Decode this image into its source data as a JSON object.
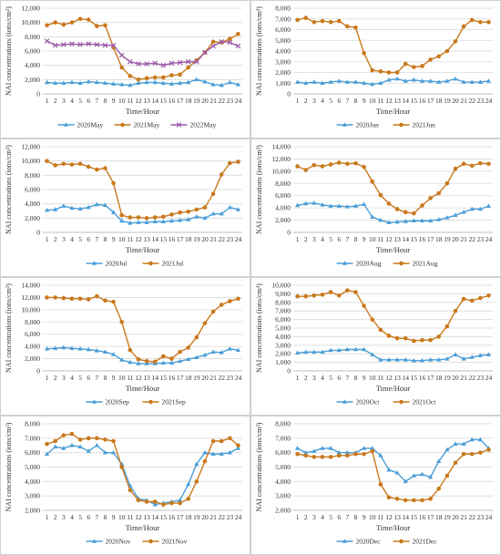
{
  "figure": {
    "colors": {
      "series_2020": "#4a9ed8",
      "series_2021": "#c9781c",
      "series_2022": "#9b59a8",
      "grid": "#d9d9d9"
    }
  },
  "chart_data": [
    {
      "type": "line",
      "xlabel": "Time/Hour",
      "ylabel": "NAI concentrations (ions/cm³)",
      "ylim": [
        0,
        12000
      ],
      "ytick_step": 2000,
      "ytick_labels": [
        "0",
        "2,000",
        "4,000",
        "6,000",
        "8,000",
        "10,000",
        "12,000"
      ],
      "x": [
        1,
        2,
        3,
        4,
        5,
        6,
        7,
        8,
        9,
        10,
        11,
        12,
        13,
        14,
        15,
        16,
        17,
        18,
        19,
        20,
        21,
        22,
        23,
        24
      ],
      "grid": "horizontal",
      "legend": "bottom",
      "series": [
        {
          "name": "2020May",
          "color_key": "series_2020",
          "marker": "triangle",
          "values": [
            1600,
            1500,
            1500,
            1600,
            1500,
            1700,
            1600,
            1500,
            1400,
            1300,
            1200,
            1500,
            1600,
            1600,
            1500,
            1400,
            1500,
            1600,
            2000,
            1700,
            1300,
            1200,
            1600,
            1300
          ]
        },
        {
          "name": "2021May",
          "color_key": "series_2021",
          "marker": "circle",
          "values": [
            9600,
            10000,
            9700,
            10000,
            10500,
            10400,
            9500,
            9600,
            6500,
            3700,
            2500,
            2000,
            2200,
            2300,
            2300,
            2600,
            2700,
            3700,
            4700,
            5800,
            7300,
            7200,
            7700,
            8400
          ]
        },
        {
          "name": "2022May",
          "color_key": "series_2022",
          "marker": "x",
          "values": [
            7400,
            6800,
            6900,
            7000,
            6900,
            7000,
            6900,
            6800,
            6800,
            5400,
            4500,
            4200,
            4200,
            4300,
            4000,
            4300,
            4400,
            4500,
            4500,
            5800,
            6700,
            7300,
            7200,
            6700
          ]
        }
      ]
    },
    {
      "type": "line",
      "xlabel": "Time/Hour",
      "ylabel": "NAI concentrations (ions/cm³)",
      "ylim": [
        0,
        8000
      ],
      "ytick_step": 1000,
      "ytick_labels": [
        "0",
        "1,000",
        "2,000",
        "3,000",
        "4,000",
        "5,000",
        "6,000",
        "7,000",
        "8,000"
      ],
      "x": [
        1,
        2,
        3,
        4,
        5,
        6,
        7,
        8,
        9,
        10,
        11,
        12,
        13,
        14,
        15,
        16,
        17,
        18,
        19,
        20,
        21,
        22,
        23,
        24
      ],
      "grid": "horizontal",
      "legend": "bottom",
      "series": [
        {
          "name": "2020Jun",
          "color_key": "series_2020",
          "marker": "triangle",
          "values": [
            1100,
            1000,
            1100,
            1000,
            1100,
            1200,
            1100,
            1100,
            1000,
            900,
            1000,
            1300,
            1400,
            1200,
            1300,
            1200,
            1200,
            1100,
            1200,
            1400,
            1100,
            1100,
            1100,
            1200
          ]
        },
        {
          "name": "2021Jun",
          "color_key": "series_2021",
          "marker": "circle",
          "values": [
            6900,
            7100,
            6700,
            6800,
            6700,
            6800,
            6300,
            6200,
            3800,
            2200,
            2100,
            2000,
            2000,
            2800,
            2500,
            2600,
            3200,
            3500,
            4000,
            4900,
            6300,
            6900,
            6700,
            6700
          ]
        }
      ]
    },
    {
      "type": "line",
      "xlabel": "Time/Hour",
      "ylabel": "NAI concentrations (ions/cm³)",
      "ylim": [
        0,
        12000
      ],
      "ytick_step": 2000,
      "ytick_labels": [
        "0",
        "2,000",
        "4,000",
        "6,000",
        "8,000",
        "10,000",
        "12,000"
      ],
      "x": [
        1,
        2,
        3,
        4,
        5,
        6,
        7,
        8,
        9,
        10,
        11,
        12,
        13,
        14,
        15,
        16,
        17,
        18,
        19,
        20,
        21,
        22,
        23,
        24
      ],
      "grid": "horizontal",
      "legend": "bottom",
      "series": [
        {
          "name": "2020Jul",
          "color_key": "series_2020",
          "marker": "triangle",
          "values": [
            3100,
            3200,
            3700,
            3400,
            3300,
            3500,
            3900,
            3800,
            2800,
            1600,
            1300,
            1400,
            1400,
            1500,
            1500,
            1600,
            1700,
            1800,
            2200,
            2000,
            2600,
            2600,
            3500,
            3200
          ]
        },
        {
          "name": "2021Jul",
          "color_key": "series_2021",
          "marker": "circle",
          "values": [
            10000,
            9400,
            9600,
            9500,
            9600,
            9200,
            8800,
            9000,
            6900,
            2400,
            2100,
            2100,
            2000,
            2100,
            2200,
            2500,
            2800,
            2900,
            3200,
            3500,
            5400,
            8100,
            9700,
            9900
          ]
        }
      ]
    },
    {
      "type": "line",
      "xlabel": "Time/Hour",
      "ylabel": "NAI concentrations (ions/cm³)",
      "ylim": [
        0,
        14000
      ],
      "ytick_step": 2000,
      "ytick_labels": [
        "0",
        "2,000",
        "4,000",
        "6,000",
        "8,000",
        "10,000",
        "12,000",
        "14,000"
      ],
      "x": [
        1,
        2,
        3,
        4,
        5,
        6,
        7,
        8,
        9,
        10,
        11,
        12,
        13,
        14,
        15,
        16,
        17,
        18,
        19,
        20,
        21,
        22,
        23,
        24
      ],
      "grid": "horizontal",
      "legend": "bottom",
      "series": [
        {
          "name": "2020Aug",
          "color_key": "series_2020",
          "marker": "triangle",
          "values": [
            4400,
            4700,
            4800,
            4500,
            4300,
            4300,
            4200,
            4300,
            4600,
            2500,
            2000,
            1600,
            1700,
            1800,
            1900,
            1900,
            1900,
            2100,
            2400,
            2800,
            3300,
            3800,
            3800,
            4300
          ]
        },
        {
          "name": "2021Aug",
          "color_key": "series_2021",
          "marker": "circle",
          "values": [
            10800,
            10200,
            11000,
            10800,
            11100,
            11400,
            11200,
            11300,
            10700,
            8300,
            6100,
            4700,
            3800,
            3300,
            3100,
            4400,
            5600,
            6400,
            8000,
            10400,
            11200,
            10900,
            11300,
            11200
          ]
        }
      ]
    },
    {
      "type": "line",
      "xlabel": "Time/Hour",
      "ylabel": "NAI concentrations (ions/cm³)",
      "ylim": [
        0,
        14000
      ],
      "ytick_step": 2000,
      "ytick_labels": [
        "0",
        "2,000",
        "4,000",
        "6,000",
        "8,000",
        "10,000",
        "12,000",
        "14,000"
      ],
      "x": [
        1,
        2,
        3,
        4,
        5,
        6,
        7,
        8,
        9,
        10,
        11,
        12,
        13,
        14,
        15,
        16,
        17,
        18,
        19,
        20,
        21,
        22,
        23,
        24
      ],
      "grid": "horizontal",
      "legend": "bottom",
      "series": [
        {
          "name": "2020Sep",
          "color_key": "series_2020",
          "marker": "triangle",
          "values": [
            3600,
            3700,
            3800,
            3700,
            3600,
            3500,
            3300,
            3100,
            2700,
            1800,
            1400,
            1200,
            1200,
            1200,
            1300,
            1300,
            1600,
            1900,
            2200,
            2600,
            3100,
            3000,
            3600,
            3400
          ]
        },
        {
          "name": "2021Sep",
          "color_key": "series_2021",
          "marker": "circle",
          "values": [
            12000,
            12000,
            11900,
            11800,
            11800,
            11700,
            12200,
            11500,
            11300,
            8000,
            3400,
            1900,
            1600,
            1500,
            2400,
            2000,
            3100,
            3800,
            5500,
            7800,
            9700,
            10800,
            11400,
            11800
          ]
        }
      ]
    },
    {
      "type": "line",
      "xlabel": "Time/Hour",
      "ylabel": "NAI concentrations (ions/cm³)",
      "ylim": [
        0,
        10000
      ],
      "ytick_step": 1000,
      "ytick_labels": [
        "0",
        "1,000",
        "2,000",
        "3,000",
        "4,000",
        "5,000",
        "6,000",
        "7,000",
        "8,000",
        "9,000",
        "10,000"
      ],
      "x": [
        1,
        2,
        3,
        4,
        5,
        6,
        7,
        8,
        9,
        10,
        11,
        12,
        13,
        14,
        15,
        16,
        17,
        18,
        19,
        20,
        21,
        22,
        23,
        24
      ],
      "grid": "horizontal",
      "legend": "bottom",
      "series": [
        {
          "name": "2020Oct",
          "color_key": "series_2020",
          "marker": "triangle",
          "values": [
            2100,
            2200,
            2200,
            2200,
            2400,
            2400,
            2500,
            2500,
            2500,
            1900,
            1300,
            1300,
            1300,
            1300,
            1200,
            1200,
            1300,
            1300,
            1400,
            1900,
            1400,
            1600,
            1800,
            1900
          ]
        },
        {
          "name": "2021Oct",
          "color_key": "series_2021",
          "marker": "circle",
          "values": [
            8700,
            8700,
            8800,
            8900,
            9200,
            8800,
            9400,
            9200,
            7600,
            6000,
            4800,
            4100,
            3800,
            3800,
            3500,
            3600,
            3600,
            4000,
            5200,
            7000,
            8400,
            8200,
            8500,
            8800
          ]
        }
      ]
    },
    {
      "type": "line",
      "xlabel": "Time/Hour",
      "ylabel": "NAI concentrations (ions/cm³)",
      "ylim": [
        2000,
        8000
      ],
      "ytick_step": 1000,
      "ytick_labels": [
        "2,000",
        "3,000",
        "4,000",
        "5,000",
        "6,000",
        "7,000",
        "8,000"
      ],
      "x": [
        1,
        2,
        3,
        4,
        5,
        6,
        7,
        8,
        9,
        10,
        11,
        12,
        13,
        14,
        15,
        16,
        17,
        18,
        19,
        20,
        21,
        22,
        23,
        24
      ],
      "grid": "horizontal",
      "legend": "bottom",
      "series": [
        {
          "name": "2020Nov",
          "color_key": "series_2020",
          "marker": "triangle",
          "values": [
            5900,
            6400,
            6300,
            6500,
            6400,
            6100,
            6500,
            6000,
            6000,
            5200,
            3700,
            2800,
            2700,
            2400,
            2500,
            2600,
            2700,
            3800,
            5200,
            6000,
            5900,
            5900,
            6000,
            6300
          ]
        },
        {
          "name": "2021Nov",
          "color_key": "series_2021",
          "marker": "circle",
          "values": [
            6600,
            6800,
            7200,
            7300,
            6900,
            7000,
            7000,
            6900,
            6800,
            5000,
            3400,
            2700,
            2600,
            2600,
            2400,
            2500,
            2500,
            2800,
            4000,
            5400,
            6800,
            6800,
            7000,
            6500
          ]
        }
      ]
    },
    {
      "type": "line",
      "xlabel": "Time/Hour",
      "ylabel": "NAI concentrations (ions/cm³)",
      "ylim": [
        2000,
        8000
      ],
      "ytick_step": 1000,
      "ytick_labels": [
        "2,000",
        "3,000",
        "4,000",
        "5,000",
        "6,000",
        "7,000",
        "8,000"
      ],
      "x": [
        1,
        2,
        3,
        4,
        5,
        6,
        7,
        8,
        9,
        10,
        11,
        12,
        13,
        14,
        15,
        16,
        17,
        18,
        19,
        20,
        21,
        22,
        23,
        24
      ],
      "grid": "horizontal",
      "legend": "bottom",
      "series": [
        {
          "name": "2020Dec",
          "color_key": "series_2020",
          "marker": "triangle",
          "values": [
            6300,
            6000,
            6100,
            6300,
            6300,
            6000,
            6000,
            6000,
            6300,
            6300,
            5800,
            4800,
            4600,
            4000,
            4400,
            4500,
            4300,
            5400,
            6200,
            6600,
            6600,
            6900,
            6900,
            6300
          ]
        },
        {
          "name": "2021Dec",
          "color_key": "series_2021",
          "marker": "circle",
          "values": [
            5900,
            5800,
            5700,
            5700,
            5700,
            5800,
            5800,
            5900,
            5900,
            6100,
            3800,
            2900,
            2800,
            2700,
            2700,
            2700,
            2800,
            3500,
            4400,
            5300,
            5900,
            5900,
            6000,
            6200
          ]
        }
      ]
    }
  ]
}
